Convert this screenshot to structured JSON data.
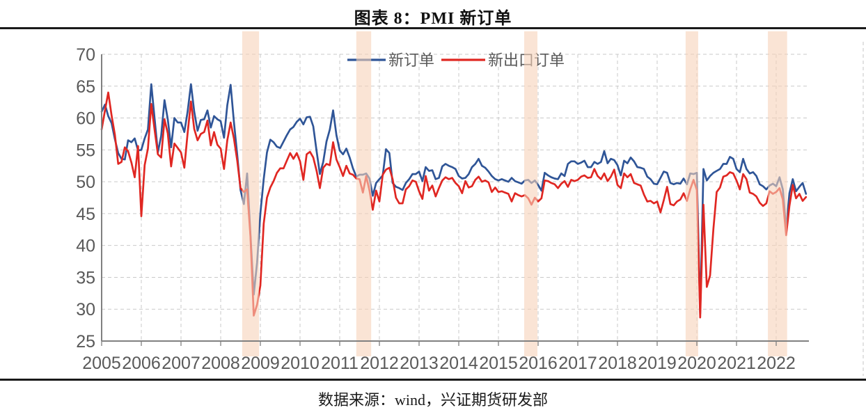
{
  "header": {
    "title": "图表 8：PMI 新订单"
  },
  "footer": {
    "source_text": "数据来源：wind，兴证期货研发部"
  },
  "colors": {
    "new_orders_line": "#2F5597",
    "new_export_orders_line": "#E02722",
    "highlight_band": "rgba(246,210,185,0.60)",
    "grid": "#c9c9c9",
    "axis": "#808080",
    "tick_label": "#595959",
    "legend_text": "#595959",
    "rule": "#1a1a1a"
  },
  "chart_data": {
    "type": "line",
    "title": "图表 8：PMI 新订单",
    "frequency": "monthly",
    "x_start": "2005-01",
    "x_end": "2022-10",
    "x_tick_labels": [
      "2005",
      "2006",
      "2007",
      "2008",
      "2009",
      "2010",
      "2011",
      "2012",
      "2013",
      "2014",
      "2015",
      "2016",
      "2017",
      "2018",
      "2019",
      "2020",
      "2021",
      "2022"
    ],
    "y_ticks": [
      25,
      30,
      35,
      40,
      45,
      50,
      55,
      60,
      65,
      70
    ],
    "ylim": [
      25,
      70
    ],
    "grid": "dashed",
    "legend_position": "top-center",
    "series": [
      {
        "name": "新订单",
        "color": "#2F5597",
        "values": [
          61.0,
          62.1,
          60.3,
          59.2,
          56.7,
          54.5,
          53.6,
          53.5,
          56.5,
          56.2,
          56.8,
          54.9,
          55.0,
          56.8,
          58.2,
          65.3,
          60.0,
          54.6,
          57.2,
          62.8,
          59.8,
          55.4,
          60.0,
          59.3,
          59.3,
          57.8,
          61.0,
          65.3,
          61.0,
          58.0,
          59.7,
          59.8,
          61.2,
          58.5,
          60.3,
          59.8,
          59.5,
          56.9,
          62.0,
          65.2,
          59.4,
          54.2,
          48.7,
          46.5,
          51.3,
          41.7,
          32.3,
          37.3,
          45.0,
          50.4,
          54.6,
          56.6,
          56.2,
          55.5,
          55.3,
          56.3,
          57.3,
          58.2,
          58.6,
          59.4,
          59.9,
          59.0,
          60.1,
          60.2,
          58.7,
          54.8,
          51.2,
          53.1,
          56.3,
          58.2,
          61.2,
          57.3,
          54.9,
          54.3,
          55.2,
          53.8,
          52.1,
          50.8,
          51.1,
          51.1,
          51.3,
          50.5,
          47.8,
          49.8,
          50.4,
          51.0,
          55.1,
          54.5,
          49.8,
          49.2,
          49.0,
          48.7,
          49.8,
          50.4,
          51.2,
          51.2,
          51.6,
          50.1,
          52.3,
          51.7,
          51.8,
          50.4,
          50.6,
          52.4,
          52.8,
          52.5,
          52.3,
          52.0,
          50.9,
          50.5,
          50.6,
          51.2,
          52.3,
          52.8,
          53.6,
          52.5,
          52.2,
          51.6,
          50.9,
          50.4,
          50.2,
          50.4,
          50.2,
          50.0,
          50.6,
          50.1,
          49.9,
          49.7,
          50.2,
          50.3,
          49.8,
          50.2,
          49.5,
          48.6,
          51.4,
          51.0,
          50.7,
          50.5,
          50.4,
          51.3,
          50.9,
          52.8,
          53.2,
          53.2,
          52.8,
          53.0,
          53.3,
          52.3,
          52.3,
          53.1,
          52.8,
          53.1,
          54.8,
          52.9,
          53.6,
          53.4,
          52.6,
          51.0,
          53.3,
          52.9,
          53.8,
          53.2,
          52.3,
          52.2,
          52.0,
          50.8,
          50.4,
          49.7,
          49.6,
          50.6,
          51.6,
          51.4,
          49.8,
          49.6,
          49.8,
          49.7,
          50.5,
          49.6,
          51.3,
          51.2,
          51.4,
          29.3,
          52.0,
          50.2,
          50.9,
          51.4,
          51.7,
          52.0,
          52.8,
          52.8,
          53.9,
          53.6,
          52.0,
          51.5,
          53.6,
          52.0,
          51.3,
          51.5,
          50.9,
          49.6,
          49.3,
          48.8,
          49.4,
          49.7,
          49.3,
          50.7,
          48.8,
          42.6,
          48.2,
          50.4,
          48.5,
          49.2,
          49.8,
          48.1
        ]
      },
      {
        "name": "新出口订单",
        "color": "#E02722",
        "values": [
          58.2,
          61.2,
          64.0,
          60.4,
          57.4,
          52.8,
          53.1,
          55.4,
          54.8,
          53.0,
          50.7,
          55.6,
          44.6,
          52.6,
          55.2,
          62.2,
          58.2,
          54.3,
          53.8,
          59.8,
          57.6,
          52.4,
          56.0,
          55.3,
          54.6,
          52.2,
          57.6,
          62.6,
          58.3,
          56.5,
          57.5,
          57.8,
          59.6,
          55.7,
          57.8,
          55.8,
          55.2,
          52.0,
          56.5,
          59.3,
          56.8,
          53.3,
          49.0,
          48.4,
          48.8,
          41.4,
          29.0,
          30.7,
          33.7,
          43.4,
          47.5,
          49.1,
          50.1,
          51.4,
          52.1,
          52.1,
          53.3,
          54.5,
          53.6,
          54.5,
          53.2,
          50.3,
          54.3,
          54.7,
          53.8,
          51.7,
          49.0,
          52.2,
          52.8,
          52.6,
          56.2,
          53.5,
          52.3,
          50.9,
          52.5,
          51.3,
          51.1,
          50.5,
          50.4,
          48.3,
          50.9,
          48.6,
          45.6,
          48.6,
          46.9,
          51.1,
          51.9,
          52.2,
          50.4,
          47.5,
          46.6,
          46.6,
          48.8,
          49.3,
          50.2,
          50.0,
          48.5,
          47.3,
          50.9,
          48.6,
          49.4,
          47.7,
          49.0,
          50.2,
          50.7,
          50.4,
          50.6,
          49.8,
          49.3,
          48.2,
          50.1,
          49.1,
          49.3,
          50.3,
          50.8,
          50.0,
          50.2,
          49.9,
          48.4,
          49.1,
          48.4,
          48.5,
          48.3,
          48.1,
          46.9,
          48.2,
          47.9,
          47.7,
          47.9,
          47.4,
          46.4,
          47.5,
          46.9,
          47.4,
          50.2,
          50.1,
          49.8,
          49.6,
          49.0,
          49.7,
          50.1,
          49.2,
          50.3,
          50.1,
          50.3,
          50.8,
          51.0,
          50.6,
          50.7,
          52.0,
          50.9,
          50.4,
          51.3,
          50.1,
          50.8,
          51.9,
          49.5,
          49.0,
          51.3,
          50.7,
          51.2,
          49.8,
          49.6,
          49.4,
          48.0,
          46.9,
          47.0,
          46.6,
          46.9,
          45.2,
          47.1,
          49.2,
          46.5,
          46.3,
          46.9,
          47.2,
          48.2,
          47.0,
          48.8,
          50.3,
          48.7,
          28.7,
          46.4,
          33.5,
          35.3,
          42.6,
          48.4,
          49.1,
          50.8,
          51.0,
          51.5,
          51.3,
          50.2,
          48.8,
          51.2,
          50.4,
          48.3,
          48.1,
          47.7,
          46.7,
          46.2,
          46.6,
          48.5,
          48.1,
          48.4,
          49.0,
          47.2,
          41.6,
          46.2,
          49.5,
          47.4,
          48.1,
          47.0,
          47.6
        ]
      }
    ],
    "highlight_bands": [
      {
        "period": "2008-08 ~ 2008-11",
        "start_month_index": 42.5,
        "end_month_index": 47.6
      },
      {
        "period": "2011-06 ~ 2011-10",
        "start_month_index": 77.0,
        "end_month_index": 81.5
      },
      {
        "period": "2015-09 ~ 2016-01",
        "start_month_index": 127.8,
        "end_month_index": 131.8
      },
      {
        "period": "2019-09 ~ 2020-01",
        "start_month_index": 176.6,
        "end_month_index": 180.4
      },
      {
        "period": "2021-11 ~ 2022-04",
        "start_month_index": 201.5,
        "end_month_index": 207.3
      }
    ]
  }
}
